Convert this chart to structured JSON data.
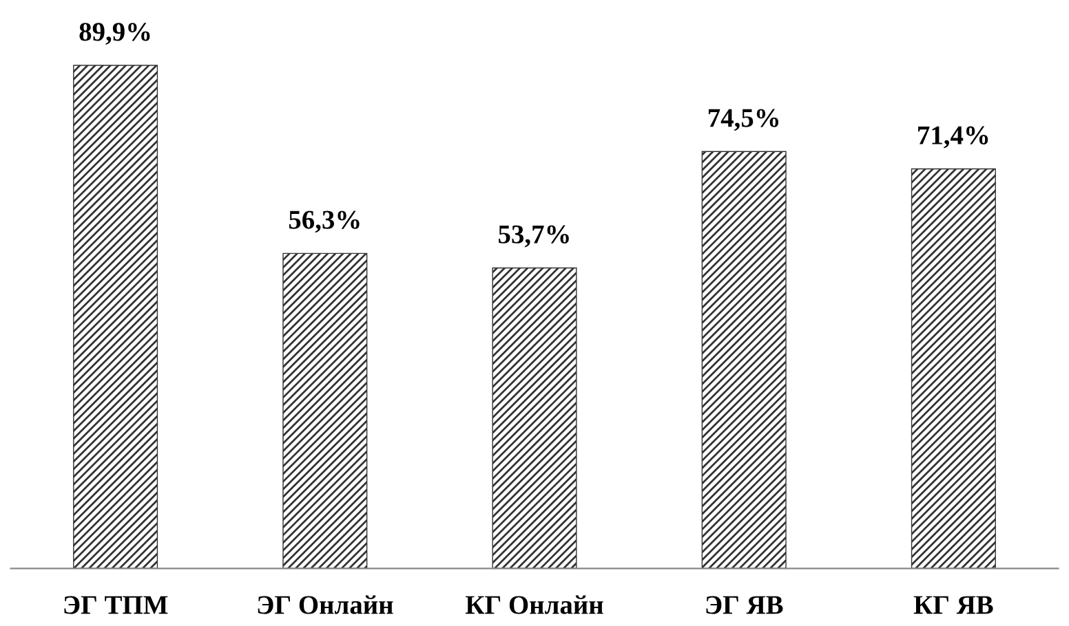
{
  "chart_data": {
    "type": "bar",
    "categories": [
      "ЭГ ТПМ",
      "ЭГ Онлайн",
      "КГ Онлайн",
      "ЭГ ЯВ",
      "КГ ЯВ"
    ],
    "values": [
      89.9,
      56.3,
      53.7,
      74.5,
      71.4
    ],
    "value_labels": [
      "89,9%",
      "56,3%",
      "53,7%",
      "74,5%",
      "71,4%"
    ],
    "color": "#333333",
    "grid": false,
    "legend": false
  }
}
